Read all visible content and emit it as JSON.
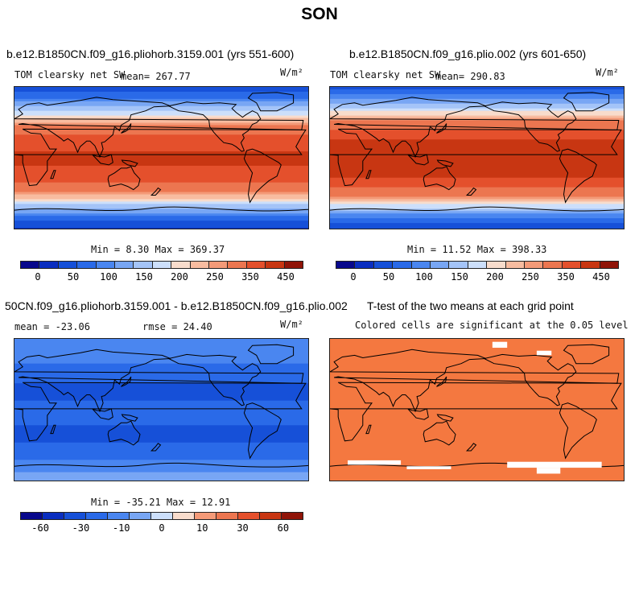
{
  "title": "SON",
  "panels": [
    {
      "title": "b.e12.B1850CN.f09_g16.pliohorb.3159.001 (yrs 551-600)",
      "subtitle": "TOM clearsky net SW",
      "stat": "mean= 267.77",
      "units": "W/m²",
      "minmax": "Min =   8.30 Max = 369.37",
      "colorbar_ticks": [
        "0",
        "50",
        "100",
        "150",
        "200",
        "250",
        "350",
        "450"
      ]
    },
    {
      "title": "b.e12.B1850CN.f09_g16.plio.002 (yrs 601-650)",
      "subtitle": "TOM clearsky net SW",
      "stat": "mean= 290.83",
      "units": "W/m²",
      "minmax": "Min =  11.52 Max = 398.33",
      "colorbar_ticks": [
        "0",
        "50",
        "100",
        "150",
        "200",
        "250",
        "350",
        "450"
      ]
    },
    {
      "title": "50CN.f09_g16.pliohorb.3159.001 - b.e12.B1850CN.f09_g16.plio.002",
      "stat_left": "mean = -23.06",
      "stat_mid": "rmse =  24.40",
      "units": "W/m²",
      "minmax": "Min = -35.21 Max =  12.91",
      "colorbar_ticks": [
        "-60",
        "-30",
        "-10",
        "0",
        "10",
        "30",
        "60"
      ]
    },
    {
      "title": "T-test of the two means at each grid point",
      "subtitle": "Colored cells are significant at the 0.05 level"
    }
  ],
  "chart_data": [
    {
      "type": "heatmap",
      "title": "b.e12.B1850CN.f09_g16.pliohorb.3159.001 (yrs 551-600)",
      "variable": "TOM clearsky net SW",
      "units": "W/m2",
      "mean": 267.77,
      "min": 8.3,
      "max": 369.37,
      "colorbar_levels": [
        0,
        25,
        50,
        75,
        100,
        125,
        150,
        175,
        200,
        225,
        250,
        300,
        350,
        400,
        450
      ],
      "zonal_profile_lat": [
        90,
        75,
        60,
        45,
        30,
        15,
        0,
        -15,
        -30,
        -45,
        -60,
        -75,
        -90
      ],
      "zonal_profile_value": [
        20,
        80,
        150,
        230,
        300,
        345,
        360,
        345,
        300,
        230,
        140,
        60,
        15
      ]
    },
    {
      "type": "heatmap",
      "title": "b.e12.B1850CN.f09_g16.plio.002 (yrs 601-650)",
      "variable": "TOM clearsky net SW",
      "units": "W/m2",
      "mean": 290.83,
      "min": 11.52,
      "max": 398.33,
      "colorbar_levels": [
        0,
        25,
        50,
        75,
        100,
        125,
        150,
        175,
        200,
        225,
        250,
        300,
        350,
        400,
        450
      ],
      "zonal_profile_lat": [
        90,
        75,
        60,
        45,
        30,
        15,
        0,
        -15,
        -30,
        -45,
        -60,
        -75,
        -90
      ],
      "zonal_profile_value": [
        30,
        100,
        170,
        260,
        330,
        375,
        390,
        375,
        330,
        260,
        160,
        70,
        20
      ]
    },
    {
      "type": "heatmap",
      "title": "50CN.f09_g16.pliohorb.3159.001 - b.e12.B1850CN.f09_g16.plio.002",
      "units": "W/m2",
      "mean": -23.06,
      "rmse": 24.4,
      "min": -35.21,
      "max": 12.91,
      "colorbar_levels": [
        -60,
        -45,
        -30,
        -20,
        -10,
        -5,
        0,
        5,
        10,
        20,
        30,
        45,
        60
      ],
      "zonal_profile_lat": [
        90,
        75,
        60,
        45,
        30,
        15,
        0,
        -15,
        -30,
        -45,
        -60,
        -75,
        -90
      ],
      "zonal_profile_value": [
        -12,
        -15,
        -20,
        -28,
        -32,
        -30,
        -30,
        -30,
        -32,
        -28,
        -18,
        -8,
        -5
      ]
    },
    {
      "type": "heatmap",
      "title": "T-test of the two means at each grid point",
      "subtitle": "Colored cells are significant at the 0.05 level",
      "significant_fraction_approx": 0.97
    }
  ],
  "colors": {
    "abs_scale": [
      "#08088c",
      "#0a2ec0",
      "#1650d8",
      "#2a6ae8",
      "#4a86f0",
      "#78a6f4",
      "#a4c4f8",
      "#ccdffb",
      "#f8dccc",
      "#f8bca0",
      "#f49a78",
      "#ec7650",
      "#e4502c",
      "#c83612",
      "#901408"
    ],
    "diff_scale": [
      "#08088c",
      "#0a2ec0",
      "#1650d8",
      "#2a6ae8",
      "#4a86f0",
      "#78a6f4",
      "#ccdffb",
      "#f8dccc",
      "#f49a78",
      "#ec7650",
      "#e4502c",
      "#c83612",
      "#901408"
    ],
    "significant": "#f47840"
  }
}
